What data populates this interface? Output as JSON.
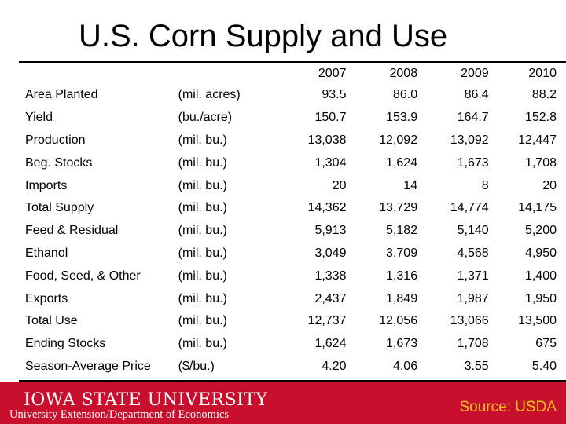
{
  "title": "U.S. Corn Supply and Use",
  "table": {
    "years": [
      "2007",
      "2008",
      "2009",
      "2010"
    ],
    "rows": [
      {
        "label": "Area Planted",
        "unit": "(mil. acres)",
        "values": [
          "93.5",
          "86.0",
          "86.4",
          "88.2"
        ]
      },
      {
        "label": "Yield",
        "unit": "(bu./acre)",
        "values": [
          "150.7",
          "153.9",
          "164.7",
          "152.8"
        ]
      },
      {
        "label": "Production",
        "unit": "(mil. bu.)",
        "values": [
          "13,038",
          "12,092",
          "13,092",
          "12,447"
        ]
      },
      {
        "label": "Beg. Stocks",
        "unit": "(mil. bu.)",
        "values": [
          "1,304",
          "1,624",
          "1,673",
          "1,708"
        ]
      },
      {
        "label": "Imports",
        "unit": "(mil. bu.)",
        "values": [
          "20",
          "14",
          "8",
          "20"
        ]
      },
      {
        "label": "Total Supply",
        "unit": "(mil. bu.)",
        "values": [
          "14,362",
          "13,729",
          "14,774",
          "14,175"
        ]
      },
      {
        "label": "Feed & Residual",
        "unit": "(mil. bu.)",
        "values": [
          "5,913",
          "5,182",
          "5,140",
          "5,200"
        ]
      },
      {
        "label": "Ethanol",
        "unit": "(mil. bu.)",
        "values": [
          "3,049",
          "3,709",
          "4,568",
          "4,950"
        ]
      },
      {
        "label": "Food, Seed, & Other",
        "unit": "(mil. bu.)",
        "values": [
          "1,338",
          "1,316",
          "1,371",
          "1,400"
        ]
      },
      {
        "label": "Exports",
        "unit": "(mil. bu.)",
        "values": [
          "2,437",
          "1,849",
          "1,987",
          "1,950"
        ]
      },
      {
        "label": "Total Use",
        "unit": "(mil. bu.)",
        "values": [
          "12,737",
          "12,056",
          "13,066",
          "13,500"
        ]
      },
      {
        "label": "Ending Stocks",
        "unit": "(mil. bu.)",
        "values": [
          "1,624",
          "1,673",
          "1,708",
          "675"
        ]
      },
      {
        "label": "Season-Average Price",
        "unit": "($/bu.)",
        "values": [
          "4.20",
          "4.06",
          "3.55",
          "5.40"
        ]
      }
    ]
  },
  "footer": {
    "university": "IOWA STATE UNIVERSITY",
    "department": "University Extension/Department of Economics",
    "source": "Source: USDA"
  },
  "colors": {
    "footer_background": "#c8102e",
    "source_text": "#f0c419"
  }
}
